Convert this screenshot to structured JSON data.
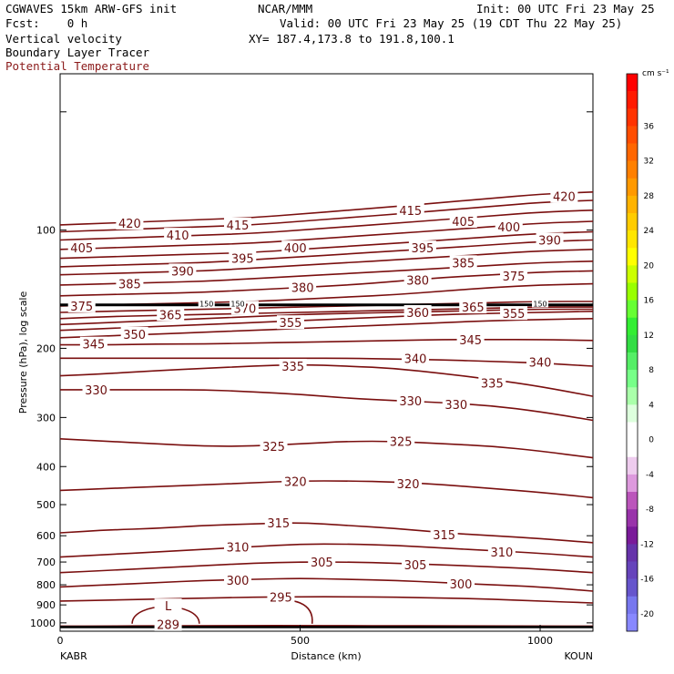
{
  "header": {
    "model": "CGWAVES 15km ARW-GFS init",
    "org": "NCAR/MMM",
    "init": "Init: 00 UTC Fri 23 May 25",
    "fcst": "Fcst:    0 h",
    "valid": "Valid: 00 UTC Fri 23 May 25 (19 CDT Thu 22 May 25)",
    "field1": "Vertical velocity",
    "xy": "XY= 187.4,173.8 to 191.8,100.1",
    "field2": "Boundary Layer Tracer",
    "field3": "Potential Temperature"
  },
  "colors": {
    "contour": "#7a0f0f",
    "label": "#6b0e0e",
    "field3_text": "#8b1a1a"
  },
  "chart_data": {
    "type": "line",
    "title": "",
    "xlabel": "Distance (km)",
    "ylabel": "Pressure (hPa), log scale",
    "xlim": [
      0,
      1110
    ],
    "ylim": [
      1050,
      40
    ],
    "y_scale": "log",
    "x_ticks": [
      0,
      500,
      1000
    ],
    "y_ticks": [
      100,
      200,
      300,
      400,
      500,
      600,
      700,
      800,
      900,
      1000
    ],
    "x_endpoint_labels": [
      "KABR",
      "KOUN"
    ],
    "contour_x": [
      0,
      100,
      200,
      300,
      400,
      500,
      600,
      700,
      800,
      900,
      1000,
      1110
    ],
    "contours": [
      {
        "theta": 289,
        "p": [
          1020,
          1020,
          1018,
          1018,
          1017,
          1017,
          1018,
          1018,
          1019,
          1019,
          1020,
          1020
        ]
      },
      {
        "theta": 295,
        "p": [
          880,
          875,
          870,
          865,
          860,
          858,
          858,
          860,
          865,
          870,
          880,
          890
        ]
      },
      {
        "theta": 300,
        "p": [
          810,
          800,
          790,
          780,
          775,
          770,
          775,
          780,
          790,
          800,
          810,
          830
        ]
      },
      {
        "theta": 305,
        "p": [
          745,
          735,
          725,
          715,
          705,
          700,
          700,
          705,
          712,
          720,
          730,
          745
        ]
      },
      {
        "theta": 310,
        "p": [
          680,
          670,
          660,
          650,
          640,
          630,
          630,
          635,
          645,
          655,
          665,
          680
        ]
      },
      {
        "theta": 315,
        "p": [
          590,
          580,
          575,
          565,
          560,
          555,
          565,
          575,
          590,
          600,
          610,
          625
        ]
      },
      {
        "theta": 320,
        "p": [
          460,
          455,
          450,
          445,
          440,
          435,
          435,
          438,
          445,
          455,
          465,
          480
        ]
      },
      {
        "theta": 325,
        "p": [
          340,
          345,
          350,
          355,
          355,
          350,
          345,
          345,
          350,
          355,
          365,
          380
        ]
      },
      {
        "theta": 330,
        "p": [
          255,
          255,
          255,
          255,
          258,
          262,
          268,
          272,
          275,
          280,
          290,
          305
        ]
      },
      {
        "theta": 335,
        "p": [
          235,
          232,
          228,
          225,
          222,
          220,
          222,
          225,
          232,
          240,
          250,
          265
        ]
      },
      {
        "theta": 340,
        "p": [
          212,
          212,
          212,
          212,
          212,
          212,
          212,
          213,
          214,
          216,
          218,
          222
        ]
      },
      {
        "theta": 345,
        "p": [
          196,
          196,
          195,
          195,
          194,
          193,
          192,
          191,
          190,
          190,
          190,
          191
        ]
      },
      {
        "theta": 350,
        "p": [
          188,
          186,
          184,
          182,
          180,
          178,
          176,
          174,
          172,
          170,
          169,
          168
        ]
      },
      {
        "theta": 355,
        "p": [
          180,
          178,
          176,
          174,
          172,
          170,
          168,
          166,
          164,
          163,
          162,
          161
        ]
      },
      {
        "theta": 360,
        "p": [
          174,
          172,
          170,
          168,
          166,
          164,
          163,
          162,
          161,
          160,
          159,
          159
        ]
      },
      {
        "theta": 365,
        "p": [
          168,
          166,
          165,
          164,
          163,
          162,
          161,
          160,
          159,
          158,
          157,
          157
        ]
      },
      {
        "theta": 370,
        "p": [
          162,
          161,
          160,
          159,
          158,
          157,
          156,
          155,
          154,
          153,
          152,
          152
        ]
      },
      {
        "theta": 375,
        "p": [
          156,
          155,
          154,
          153,
          152,
          150,
          148,
          146,
          143,
          140,
          138,
          137
        ]
      },
      {
        "theta": 380,
        "p": [
          147,
          146,
          145,
          144,
          142,
          140,
          138,
          135,
          132,
          130,
          128,
          127
        ]
      },
      {
        "theta": 385,
        "p": [
          138,
          137,
          136,
          135,
          133,
          131,
          129,
          127,
          125,
          123,
          121,
          120
        ]
      },
      {
        "theta": 390,
        "p": [
          130,
          129,
          128,
          127,
          125,
          123,
          121,
          119,
          117,
          115,
          113,
          112
        ]
      },
      {
        "theta": 395,
        "p": [
          124,
          123,
          122,
          121,
          119,
          117,
          115,
          113,
          111,
          109,
          107,
          106
        ]
      },
      {
        "theta": 400,
        "p": [
          118,
          117,
          116,
          115,
          114,
          112,
          110,
          108,
          106,
          104,
          102,
          101
        ]
      },
      {
        "theta": 405,
        "p": [
          112,
          111,
          110,
          109,
          108,
          106,
          104,
          102,
          100,
          98,
          96,
          95
        ]
      },
      {
        "theta": 410,
        "p": [
          106,
          105,
          104,
          103,
          102,
          100,
          98,
          96,
          94,
          92,
          90,
          89
        ]
      },
      {
        "theta": 415,
        "p": [
          101,
          100,
          99,
          98,
          97,
          95,
          93,
          91,
          89,
          87,
          85,
          84
        ]
      },
      {
        "theta": 420,
        "p": [
          97,
          96,
          95,
          94,
          93,
          91,
          89,
          87,
          85,
          83,
          81,
          80
        ]
      }
    ],
    "contour_labels": [
      {
        "text": "420",
        "x": 145,
        "p": 96
      },
      {
        "text": "410",
        "x": 245,
        "p": 103
      },
      {
        "text": "415",
        "x": 370,
        "p": 97
      },
      {
        "text": "405",
        "x": 45,
        "p": 111
      },
      {
        "text": "390",
        "x": 255,
        "p": 127
      },
      {
        "text": "395",
        "x": 380,
        "p": 118
      },
      {
        "text": "400",
        "x": 490,
        "p": 111
      },
      {
        "text": "415",
        "x": 730,
        "p": 89
      },
      {
        "text": "405",
        "x": 840,
        "p": 95
      },
      {
        "text": "400",
        "x": 935,
        "p": 98
      },
      {
        "text": "420",
        "x": 1050,
        "p": 82
      },
      {
        "text": "390",
        "x": 1020,
        "p": 106
      },
      {
        "text": "395",
        "x": 755,
        "p": 111
      },
      {
        "text": "385",
        "x": 840,
        "p": 121
      },
      {
        "text": "375",
        "x": 945,
        "p": 131
      },
      {
        "text": "385",
        "x": 145,
        "p": 137
      },
      {
        "text": "380",
        "x": 505,
        "p": 140
      },
      {
        "text": "380",
        "x": 745,
        "p": 134
      },
      {
        "text": "375",
        "x": 45,
        "p": 156
      },
      {
        "text": "365",
        "x": 230,
        "p": 164
      },
      {
        "text": "370",
        "x": 385,
        "p": 158
      },
      {
        "text": "360",
        "x": 745,
        "p": 162
      },
      {
        "text": "365",
        "x": 860,
        "p": 157
      },
      {
        "text": "355",
        "x": 945,
        "p": 163
      },
      {
        "text": "355",
        "x": 480,
        "p": 172
      },
      {
        "text": "345",
        "x": 70,
        "p": 195
      },
      {
        "text": "350",
        "x": 155,
        "p": 184
      },
      {
        "text": "340",
        "x": 740,
        "p": 212
      },
      {
        "text": "345",
        "x": 855,
        "p": 190
      },
      {
        "text": "340",
        "x": 1000,
        "p": 217
      },
      {
        "text": "335",
        "x": 485,
        "p": 222
      },
      {
        "text": "335",
        "x": 900,
        "p": 245
      },
      {
        "text": "330",
        "x": 75,
        "p": 255
      },
      {
        "text": "330",
        "x": 730,
        "p": 272
      },
      {
        "text": "330",
        "x": 825,
        "p": 278
      },
      {
        "text": "325",
        "x": 445,
        "p": 355
      },
      {
        "text": "325",
        "x": 710,
        "p": 345
      },
      {
        "text": "320",
        "x": 490,
        "p": 436
      },
      {
        "text": "320",
        "x": 725,
        "p": 442
      },
      {
        "text": "315",
        "x": 455,
        "p": 556
      },
      {
        "text": "315",
        "x": 800,
        "p": 596
      },
      {
        "text": "310",
        "x": 370,
        "p": 640
      },
      {
        "text": "310",
        "x": 920,
        "p": 660
      },
      {
        "text": "305",
        "x": 545,
        "p": 700
      },
      {
        "text": "305",
        "x": 740,
        "p": 712
      },
      {
        "text": "300",
        "x": 370,
        "p": 778
      },
      {
        "text": "295",
        "x": 460,
        "p": 860
      },
      {
        "text": "300",
        "x": 835,
        "p": 795
      },
      {
        "text": "289",
        "x": 225,
        "p": 1010
      },
      {
        "text": "L",
        "x": 225,
        "p": 905
      }
    ],
    "tracer_line": {
      "p": 155,
      "x_range": [
        0,
        1110
      ]
    },
    "tracer_labels": [
      {
        "text": "150",
        "x": 305,
        "p": 154
      },
      {
        "text": "150",
        "x": 370,
        "p": 154
      },
      {
        "text": "150",
        "x": 1000,
        "p": 154
      }
    ],
    "colorbar": {
      "unit": "cm s⁻¹",
      "tick_values": [
        36,
        32,
        28,
        24,
        20,
        16,
        12,
        8,
        4,
        0,
        -4,
        -8,
        -12,
        -16,
        -20
      ],
      "levels": [
        40,
        38,
        36,
        34,
        32,
        30,
        28,
        26,
        24,
        22,
        20,
        18,
        16,
        14,
        12,
        10,
        8,
        6,
        4,
        2,
        0,
        -2,
        -4,
        -6,
        -8,
        -10,
        -12,
        -14,
        -16,
        -18,
        -20,
        -22
      ],
      "colors": [
        "#ff0000",
        "#ff1a00",
        "#ff3300",
        "#ff4d00",
        "#ff6600",
        "#ff8000",
        "#ff9900",
        "#ffb300",
        "#ffcc00",
        "#ffe600",
        "#ffff00",
        "#ccff00",
        "#99ff00",
        "#66ff33",
        "#33ee33",
        "#33dd44",
        "#55ee66",
        "#77ff88",
        "#aaffaa",
        "#ddffdd",
        "#ffffff",
        "#ffffff",
        "#eeccee",
        "#dd99dd",
        "#bb55bb",
        "#9933aa",
        "#7a1a99",
        "#6633aa",
        "#6644bb",
        "#6655cc",
        "#7777ee",
        "#8888ff"
      ]
    }
  }
}
